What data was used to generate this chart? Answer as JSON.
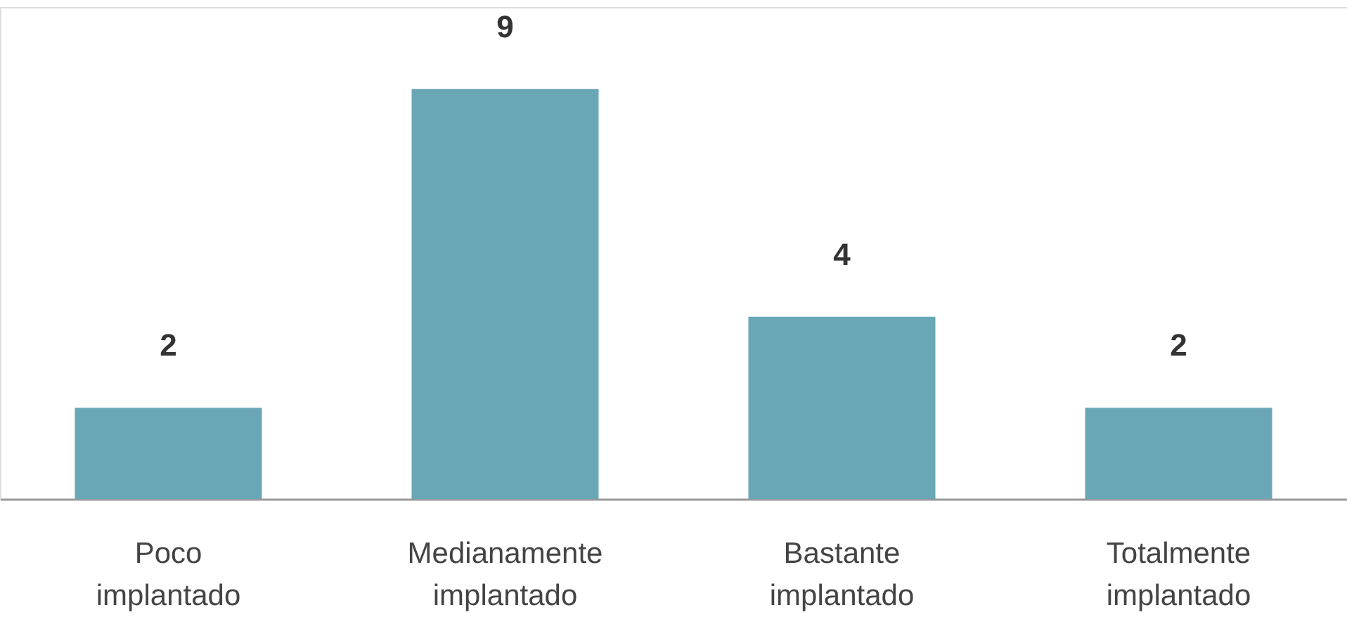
{
  "chart_data": {
    "type": "bar",
    "categories": [
      "Poco implantado",
      "Medianamente implantado",
      "Bastante implantado",
      "Totalmente implantado"
    ],
    "values": [
      2,
      9,
      4,
      2
    ],
    "color": "#69a7b6",
    "data_labels": true,
    "grid": false
  }
}
